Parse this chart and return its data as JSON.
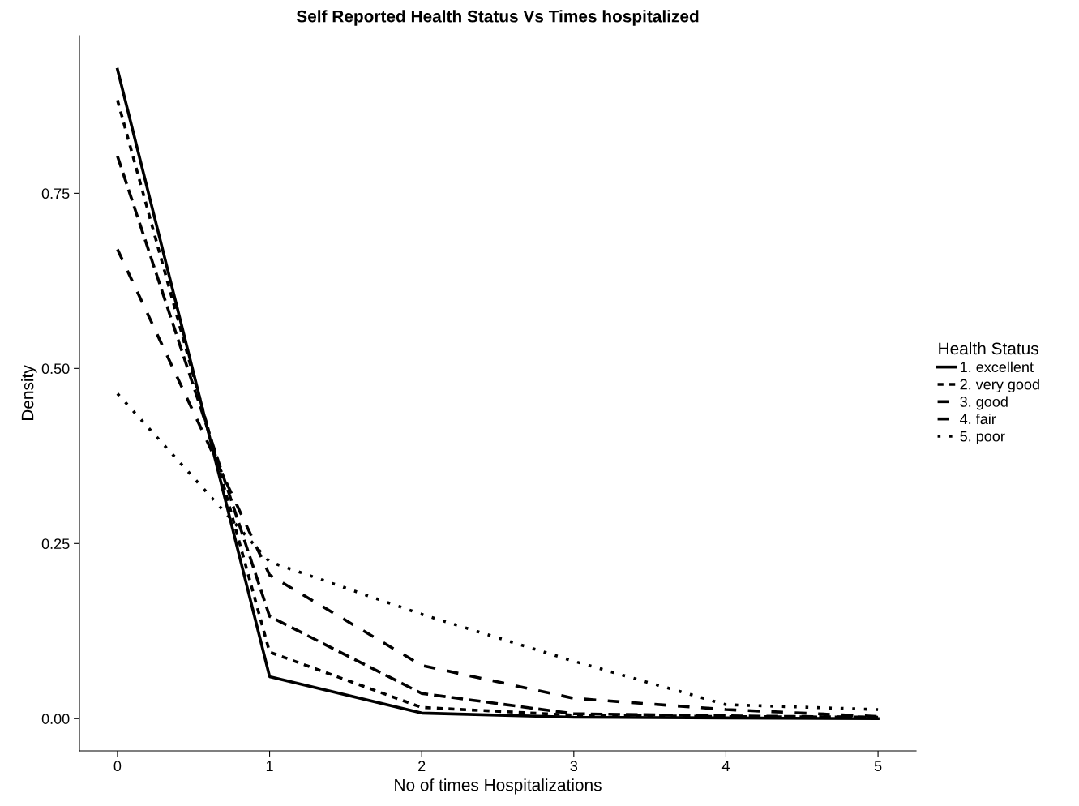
{
  "chart_data": {
    "type": "line",
    "title": "Self Reported Health Status Vs Times hospitalized",
    "xlabel": "No of times Hospitalizations",
    "ylabel": "Density",
    "legend_title": "Health Status",
    "x": [
      0,
      1,
      2,
      3,
      4,
      5
    ],
    "series": [
      {
        "name": "1. excellent",
        "color": "#000000",
        "line_style": "solid",
        "values": [
          0.927,
          0.06,
          0.008,
          0.002,
          0.001,
          0.0
        ]
      },
      {
        "name": "2. very good",
        "color": "#000000",
        "line_style": "dashed",
        "values": [
          0.883,
          0.095,
          0.016,
          0.005,
          0.003,
          0.002
        ]
      },
      {
        "name": "3. good",
        "color": "#000000",
        "line_style": "dashed",
        "values": [
          0.803,
          0.146,
          0.036,
          0.007,
          0.004,
          0.002
        ]
      },
      {
        "name": "4. fair",
        "color": "#000000",
        "line_style": "dashed",
        "values": [
          0.67,
          0.205,
          0.076,
          0.029,
          0.013,
          0.003
        ]
      },
      {
        "name": "5. poor",
        "color": "#000000",
        "line_style": "dotted",
        "values": [
          0.464,
          0.224,
          0.149,
          0.082,
          0.02,
          0.013
        ]
      }
    ],
    "xlim": [
      -0.25,
      5.25
    ],
    "ylim": [
      -0.046,
      0.975
    ],
    "xticks": [
      0,
      1,
      2,
      3,
      4,
      5
    ],
    "yticks": [
      {
        "value": 0,
        "label": "0.00"
      },
      {
        "value": 0.25,
        "label": "0.25"
      },
      {
        "value": 0.5,
        "label": "0.50"
      },
      {
        "value": 0.75,
        "label": "0.75"
      }
    ],
    "grid": false,
    "legend": "right",
    "marker": "none"
  }
}
